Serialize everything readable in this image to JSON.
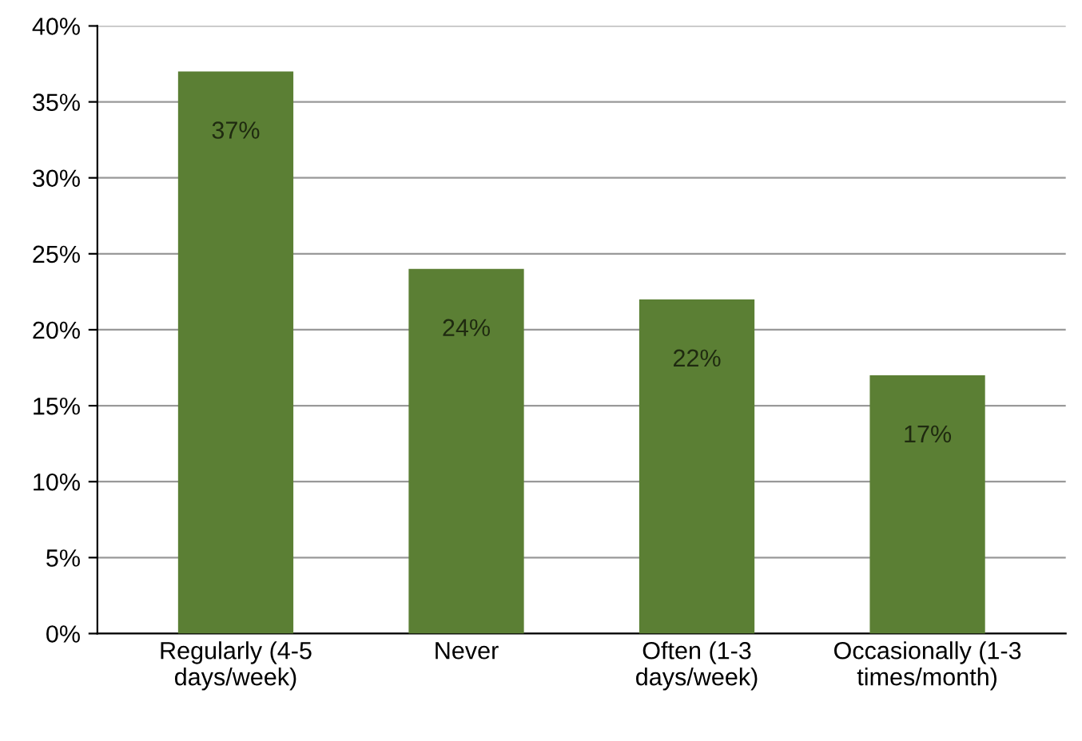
{
  "chart_data": {
    "type": "bar",
    "categories": [
      "Regularly (4-5\ndays/week)",
      "Never",
      "Often (1-3\ndays/week)",
      "Occasionally (1-3\ntimes/month)"
    ],
    "values": [
      37,
      24,
      22,
      17
    ],
    "value_labels": [
      "37%",
      "24%",
      "22%",
      "17%"
    ],
    "color": "#5b7f34",
    "ylim": [
      0,
      40
    ],
    "yticks": [
      {
        "value": 0,
        "label": "0%"
      },
      {
        "value": 5,
        "label": "5%"
      },
      {
        "value": 10,
        "label": "10%"
      },
      {
        "value": 15,
        "label": "15%"
      },
      {
        "value": 20,
        "label": "20%"
      },
      {
        "value": 25,
        "label": "25%"
      },
      {
        "value": 30,
        "label": "30%"
      },
      {
        "value": 35,
        "label": "35%"
      },
      {
        "value": 40,
        "label": "40%"
      }
    ],
    "grid": "y",
    "legend": false
  }
}
